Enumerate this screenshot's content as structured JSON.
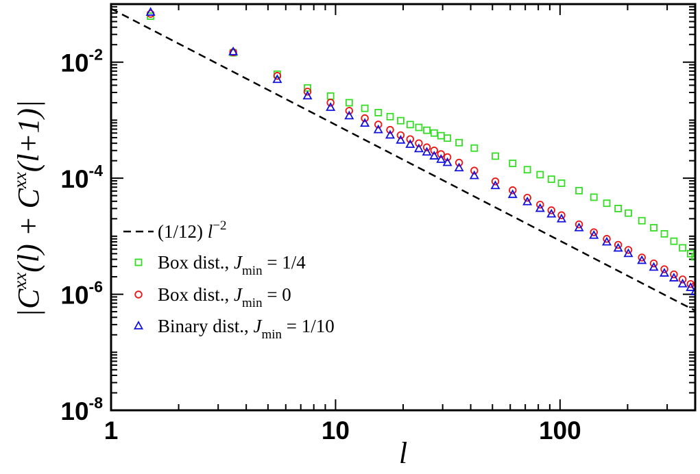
{
  "chart_data": {
    "type": "scatter",
    "x_scale": "log",
    "y_scale": "log",
    "xlim": [
      1,
      400
    ],
    "ylim": [
      1e-08,
      0.1
    ],
    "xlabel": "l",
    "ylabel": {
      "open": "|C",
      "sup1": "xx",
      "mid": "(l) + C",
      "sup2": "xx",
      "close": "(l+1)|"
    },
    "x_ticks": [
      {
        "value": 1,
        "label": "1"
      },
      {
        "value": 10,
        "label": "10"
      },
      {
        "value": 100,
        "label": "100"
      }
    ],
    "y_ticks": [
      {
        "value": 0.01,
        "base": "10",
        "exp": "-2"
      },
      {
        "value": 0.0001,
        "base": "10",
        "exp": "-4"
      },
      {
        "value": 1e-06,
        "base": "10",
        "exp": "-6"
      },
      {
        "value": 1e-08,
        "base": "10",
        "exp": "-8"
      }
    ],
    "reference_line": {
      "coefficient": 0.0833333,
      "power": -2,
      "color": "#000000",
      "style": "dashed"
    },
    "legend": {
      "placement": "center-left",
      "entries": [
        {
          "kind": "line",
          "marker": "dashed-line",
          "color": "#000000",
          "text": "(1/12) ",
          "var": "l",
          "sup": "−2"
        },
        {
          "kind": "series",
          "series": 0,
          "marker": "square",
          "color": "#33dd22",
          "text": "Box dist., ",
          "var": "J",
          "sub": "min",
          "tail": " = 1/4"
        },
        {
          "kind": "series",
          "series": 1,
          "marker": "circle",
          "color": "#ee1111",
          "text": "Box dist., ",
          "var": "J",
          "sub": "min",
          "tail": " = 0"
        },
        {
          "kind": "series",
          "series": 2,
          "marker": "triangle",
          "color": "#1111dd",
          "text": "Binary dist., ",
          "var": "J",
          "sub": "min",
          "tail": " = 1/10"
        }
      ]
    },
    "series": [
      {
        "marker": "square",
        "color": "#33dd22",
        "points": [
          [
            1.5,
            0.062
          ],
          [
            3.5,
            0.0145
          ],
          [
            5.5,
            0.0062
          ],
          [
            7.5,
            0.0036
          ],
          [
            9.5,
            0.0026
          ],
          [
            11.5,
            0.002
          ],
          [
            13.5,
            0.0016
          ],
          [
            15.5,
            0.00135
          ],
          [
            17.5,
            0.00115
          ],
          [
            19.5,
            0.00098
          ],
          [
            21.5,
            0.00084
          ],
          [
            23.5,
            0.00075
          ],
          [
            25.5,
            0.00067
          ],
          [
            27.5,
            0.0006
          ],
          [
            29.5,
            0.00054
          ],
          [
            31.5,
            0.00049
          ],
          [
            35.5,
            0.00041
          ],
          [
            41.5,
            0.00033
          ],
          [
            51.5,
            0.00024
          ],
          [
            61.5,
            0.00018
          ],
          [
            71.5,
            0.00014
          ],
          [
            81.5,
            0.000115
          ],
          [
            91.5,
            9.6e-05
          ],
          [
            101.5,
            8.2e-05
          ],
          [
            121.5,
            6.1e-05
          ],
          [
            141.5,
            4.7e-05
          ],
          [
            161.5,
            3.7e-05
          ],
          [
            181.5,
            3e-05
          ],
          [
            201.5,
            2.5e-05
          ],
          [
            231.5,
            1.85e-05
          ],
          [
            261.5,
            1.4e-05
          ],
          [
            291.5,
            1.1e-05
          ],
          [
            321.5,
            8.2e-06
          ],
          [
            351.5,
            6.3e-06
          ],
          [
            381.5,
            5e-06
          ],
          [
            399.5,
            4.4e-06
          ]
        ]
      },
      {
        "marker": "circle",
        "color": "#ee1111",
        "points": [
          [
            1.5,
            0.068
          ],
          [
            3.5,
            0.0148
          ],
          [
            5.5,
            0.0058
          ],
          [
            7.5,
            0.0031
          ],
          [
            9.5,
            0.002
          ],
          [
            11.5,
            0.00145
          ],
          [
            13.5,
            0.00108
          ],
          [
            15.5,
            0.00084
          ],
          [
            17.5,
            0.00068
          ],
          [
            19.5,
            0.00055
          ],
          [
            21.5,
            0.00047
          ],
          [
            23.5,
            0.0004
          ],
          [
            25.5,
            0.00034
          ],
          [
            27.5,
            0.0003
          ],
          [
            29.5,
            0.00026
          ],
          [
            31.5,
            0.00023
          ],
          [
            35.5,
            0.000185
          ],
          [
            41.5,
            0.000135
          ],
          [
            51.5,
            8.8e-05
          ],
          [
            61.5,
            6.2e-05
          ],
          [
            71.5,
            4.6e-05
          ],
          [
            81.5,
            3.5e-05
          ],
          [
            91.5,
            2.8e-05
          ],
          [
            101.5,
            2.3e-05
          ],
          [
            121.5,
            1.6e-05
          ],
          [
            141.5,
            1.17e-05
          ],
          [
            161.5,
            9e-06
          ],
          [
            181.5,
            7.1e-06
          ],
          [
            201.5,
            5.8e-06
          ],
          [
            231.5,
            4.3e-06
          ],
          [
            261.5,
            3.4e-06
          ],
          [
            291.5,
            2.7e-06
          ],
          [
            321.5,
            2.2e-06
          ],
          [
            351.5,
            1.8e-06
          ],
          [
            381.5,
            1.5e-06
          ],
          [
            399.5,
            1.4e-06
          ]
        ]
      },
      {
        "marker": "triangle",
        "color": "#1111dd",
        "points": [
          [
            1.5,
            0.072
          ],
          [
            3.5,
            0.015
          ],
          [
            5.5,
            0.005
          ],
          [
            7.5,
            0.0026
          ],
          [
            9.5,
            0.00165
          ],
          [
            11.5,
            0.00118
          ],
          [
            13.5,
            0.00088
          ],
          [
            15.5,
            0.00068
          ],
          [
            17.5,
            0.00055
          ],
          [
            19.5,
            0.00045
          ],
          [
            21.5,
            0.00038
          ],
          [
            23.5,
            0.00032
          ],
          [
            25.5,
            0.00028
          ],
          [
            27.5,
            0.00024
          ],
          [
            29.5,
            0.00021
          ],
          [
            31.5,
            0.000185
          ],
          [
            35.5,
            0.00015
          ],
          [
            41.5,
            0.00011
          ],
          [
            51.5,
            7.4e-05
          ],
          [
            61.5,
            5.2e-05
          ],
          [
            71.5,
            3.9e-05
          ],
          [
            81.5,
            3e-05
          ],
          [
            91.5,
            2.4e-05
          ],
          [
            101.5,
            1.98e-05
          ],
          [
            121.5,
            1.39e-05
          ],
          [
            141.5,
            1.03e-05
          ],
          [
            161.5,
            7.9e-06
          ],
          [
            181.5,
            6.2e-06
          ],
          [
            201.5,
            5e-06
          ],
          [
            231.5,
            3.8e-06
          ],
          [
            261.5,
            2.9e-06
          ],
          [
            291.5,
            2.3e-06
          ],
          [
            321.5,
            1.9e-06
          ],
          [
            351.5,
            1.5e-06
          ],
          [
            381.5,
            1.3e-06
          ],
          [
            399.5,
            1.1e-06
          ]
        ]
      }
    ]
  }
}
